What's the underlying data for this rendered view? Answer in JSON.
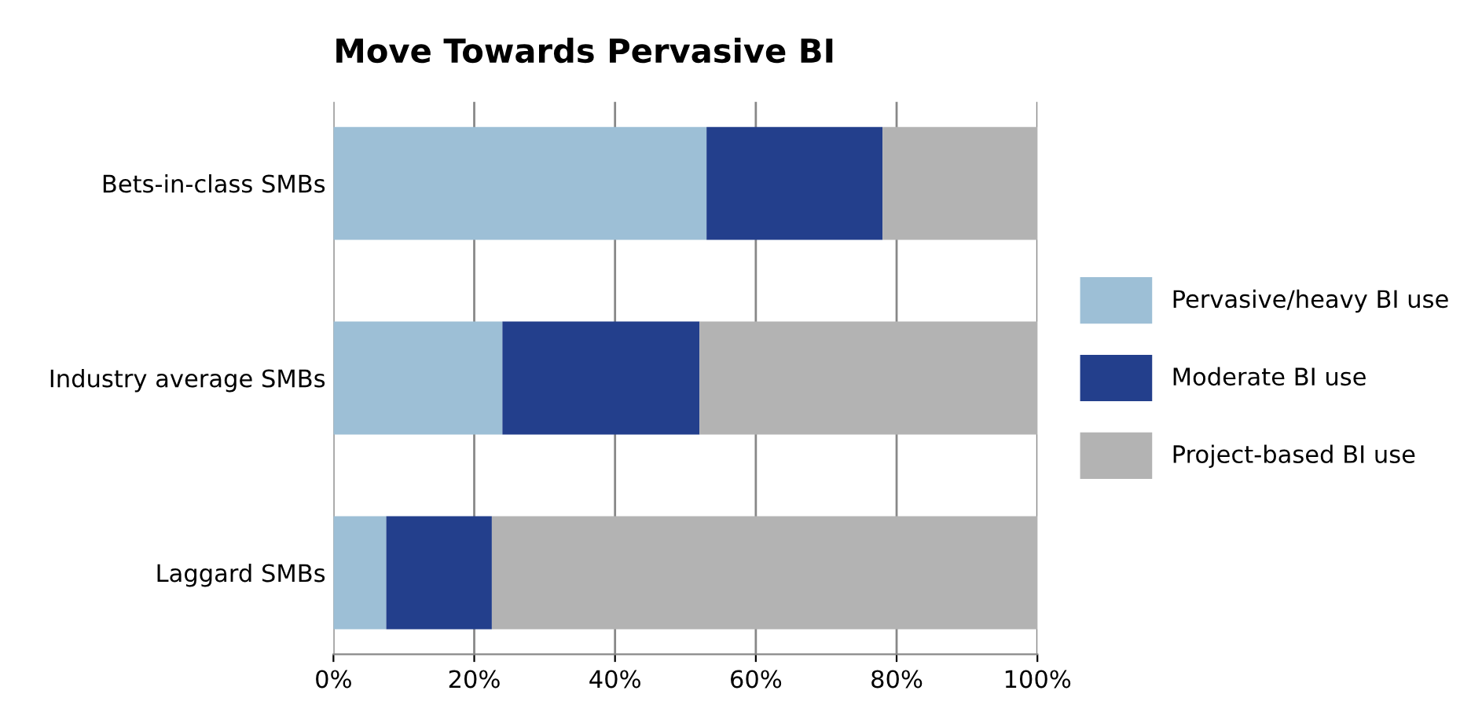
{
  "chart_data": {
    "type": "bar",
    "title": "Move Towards Pervasive BI",
    "orientation": "horizontal",
    "stacked": true,
    "categories": [
      "Bets-in-class SMBs",
      "Industry average SMBs",
      "Laggard SMBs"
    ],
    "series": [
      {
        "name": "Pervasive/heavy BI use",
        "color": "#9dbfd6",
        "values": [
          53,
          24,
          7.5
        ]
      },
      {
        "name": "Moderate BI use",
        "color": "#233f8c",
        "values": [
          25,
          28,
          15
        ]
      },
      {
        "name": "Project-based BI use",
        "color": "#b3b3b3",
        "values": [
          22,
          48,
          77.5
        ]
      }
    ],
    "xlim": [
      0,
      100
    ],
    "xticks": [
      {
        "value": 0,
        "label": "0%"
      },
      {
        "value": 20,
        "label": "20%"
      },
      {
        "value": 40,
        "label": "40%"
      },
      {
        "value": 60,
        "label": "60%"
      },
      {
        "value": 80,
        "label": "80%"
      },
      {
        "value": 100,
        "label": "100%"
      }
    ],
    "grid": "x",
    "legend": "right"
  }
}
